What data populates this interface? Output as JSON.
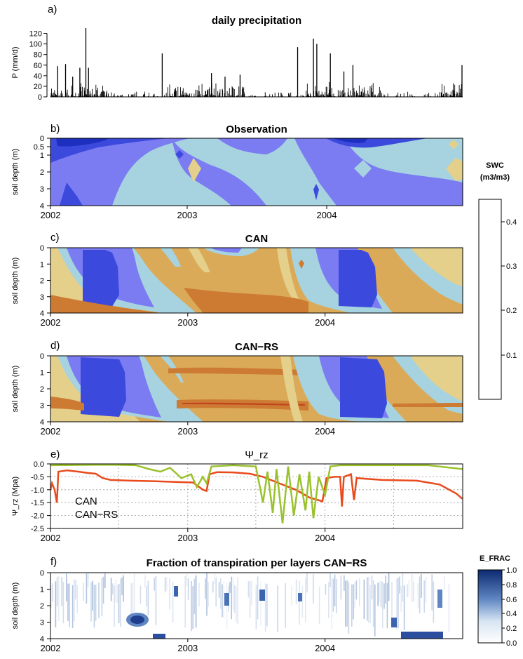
{
  "colors": {
    "swc": [
      "#c1441f",
      "#cd7b33",
      "#daaa59",
      "#e4d08b",
      "#a6d3df",
      "#7b7cf2",
      "#3b49dc",
      "#1d2fbf",
      "#0a1b86"
    ],
    "can_line": "#e84a1c",
    "canrs_line": "#9ac22c",
    "efrac_low": "#ffffff",
    "efrac_high": "#0c2a70"
  },
  "year_ticks": [
    "2002",
    "2003",
    "2004"
  ],
  "swc_legend": {
    "title_line1": "SWC",
    "title_line2": "(m3/m3)",
    "labels": [
      "0.4",
      "0.3",
      "0.2",
      "0.1"
    ]
  },
  "efrac_legend": {
    "title": "E_FRAC",
    "labels": [
      "1.0",
      "0.8",
      "0.6",
      "0.4",
      "0.2",
      "0.0"
    ]
  },
  "chart_data": [
    {
      "panel": "a",
      "letter": "a)",
      "type": "bar",
      "title": "daily precipitation",
      "ylabel": "P (mm/d)",
      "xlabel": "",
      "ylim": [
        0,
        130
      ],
      "yticks": [
        "0",
        "20",
        "40",
        "60",
        "80",
        "100",
        "120"
      ],
      "x_range": [
        "2002-01-01",
        "2004-12-31"
      ],
      "spikes": [
        {
          "date": "2002-01-20",
          "value": 58
        },
        {
          "date": "2002-02-10",
          "value": 62
        },
        {
          "date": "2002-03-01",
          "value": 38
        },
        {
          "date": "2002-03-20",
          "value": 55
        },
        {
          "date": "2002-04-05",
          "value": 130
        },
        {
          "date": "2002-04-12",
          "value": 55
        },
        {
          "date": "2002-10-25",
          "value": 82
        },
        {
          "date": "2003-03-05",
          "value": 45
        },
        {
          "date": "2003-04-10",
          "value": 38
        },
        {
          "date": "2003-05-20",
          "value": 42
        },
        {
          "date": "2003-10-20",
          "value": 94
        },
        {
          "date": "2003-12-01",
          "value": 110
        },
        {
          "date": "2003-12-10",
          "value": 100
        },
        {
          "date": "2004-01-15",
          "value": 82
        },
        {
          "date": "2004-02-20",
          "value": 48
        },
        {
          "date": "2004-03-15",
          "value": 60
        },
        {
          "date": "2004-12-30",
          "value": 60
        }
      ]
    },
    {
      "panel": "b",
      "letter": "b)",
      "type": "heatmap",
      "title": "Observation",
      "ylabel": "soil depth (m)",
      "yticks": [
        "0",
        "0.5",
        "1",
        "2",
        "3",
        "4"
      ],
      "ylim": [
        4,
        0
      ],
      "value_range": [
        0.05,
        0.45
      ],
      "pattern": "mostly 0.25-0.35 (light blue/blue); wet top layers (>0.35) in early 2002, early 2004 and late 2004; small dry pockets (0.2-0.25) near mid-2003 and mid-2004"
    },
    {
      "panel": "c",
      "letter": "c)",
      "type": "heatmap",
      "title": "CAN",
      "ylabel": "soil depth (m)",
      "yticks": [
        "0",
        "1",
        "2",
        "3",
        "4"
      ],
      "ylim": [
        4,
        0
      ],
      "value_range": [
        0.05,
        0.45
      ],
      "pattern": "wet (0.3-0.4) columns in Feb-Jul 2002 and Jan-Jun 2004; dry (0.15-0.2) elsewhere, driest near 2.5-3.5 m"
    },
    {
      "panel": "d",
      "letter": "d)",
      "type": "heatmap",
      "title": "CAN−RS",
      "ylabel": "soil depth (m)",
      "yticks": [
        "0",
        "1",
        "2",
        "3",
        "4"
      ],
      "ylim": [
        4,
        0
      ],
      "value_range": [
        0.05,
        0.45
      ],
      "pattern": "similar to CAN but drier in 2003 (0.1-0.2) with reddish bands at ~1 m and ~3 m"
    },
    {
      "panel": "e",
      "letter": "e)",
      "type": "line",
      "title": "Ψ_rz",
      "ylabel": "Ψ_rz (Mpa)",
      "ylim": [
        -2.5,
        0.0
      ],
      "yticks": [
        "0.0",
        "-0.5",
        "-1.0",
        "-1.5",
        "-2.0",
        "-2.5"
      ],
      "series": [
        {
          "name": "CAN",
          "points": [
            [
              "2002-01-01",
              -1.0
            ],
            [
              "2002-01-05",
              -0.75
            ],
            [
              "2002-01-12",
              -1.0
            ],
            [
              "2002-01-18",
              -1.5
            ],
            [
              "2002-01-22",
              -0.3
            ],
            [
              "2002-02-15",
              -0.25
            ],
            [
              "2002-03-15",
              -0.3
            ],
            [
              "2002-04-10",
              -0.35
            ],
            [
              "2002-05-01",
              -0.38
            ],
            [
              "2002-05-20",
              -0.55
            ],
            [
              "2002-06-10",
              -0.62
            ],
            [
              "2002-08-01",
              -0.65
            ],
            [
              "2002-10-01",
              -0.67
            ],
            [
              "2002-12-01",
              -0.7
            ],
            [
              "2003-01-15",
              -0.72
            ],
            [
              "2003-02-10",
              -1.0
            ],
            [
              "2003-02-20",
              -1.05
            ],
            [
              "2003-02-28",
              -0.4
            ],
            [
              "2003-03-20",
              -0.32
            ],
            [
              "2003-05-01",
              -0.33
            ],
            [
              "2003-06-15",
              -0.38
            ],
            [
              "2003-07-20",
              -0.5
            ],
            [
              "2003-09-01",
              -0.75
            ],
            [
              "2003-10-15",
              -1.0
            ],
            [
              "2003-11-20",
              -1.3
            ],
            [
              "2003-12-25",
              -1.45
            ],
            [
              "2004-01-05",
              -0.55
            ],
            [
              "2004-01-25",
              -0.5
            ],
            [
              "2004-02-10",
              -0.5
            ],
            [
              "2004-02-15",
              -1.65
            ],
            [
              "2004-02-20",
              -0.5
            ],
            [
              "2004-03-10",
              -0.4
            ],
            [
              "2004-03-18",
              -1.4
            ],
            [
              "2004-03-25",
              -0.55
            ],
            [
              "2004-06-01",
              -0.62
            ],
            [
              "2004-09-01",
              -0.65
            ],
            [
              "2004-11-01",
              -0.8
            ],
            [
              "2004-12-15",
              -1.15
            ],
            [
              "2004-12-31",
              -1.35
            ]
          ]
        },
        {
          "name": "CAN−RS",
          "points": [
            [
              "2002-01-01",
              -0.05
            ],
            [
              "2002-06-01",
              -0.03
            ],
            [
              "2002-08-15",
              -0.05
            ],
            [
              "2002-09-20",
              -0.2
            ],
            [
              "2002-10-20",
              -0.3
            ],
            [
              "2002-11-15",
              -0.15
            ],
            [
              "2002-12-15",
              -0.55
            ],
            [
              "2003-01-10",
              -0.4
            ],
            [
              "2003-01-25",
              -0.9
            ],
            [
              "2003-02-10",
              -0.5
            ],
            [
              "2003-02-20",
              -0.75
            ],
            [
              "2003-03-05",
              -0.1
            ],
            [
              "2003-05-01",
              -0.05
            ],
            [
              "2003-07-01",
              -0.1
            ],
            [
              "2003-07-20",
              -1.5
            ],
            [
              "2003-08-01",
              -0.3
            ],
            [
              "2003-08-15",
              -1.9
            ],
            [
              "2003-08-25",
              -0.2
            ],
            [
              "2003-09-10",
              -2.3
            ],
            [
              "2003-09-25",
              -0.1
            ],
            [
              "2003-10-10",
              -2.0
            ],
            [
              "2003-10-25",
              -0.4
            ],
            [
              "2003-11-10",
              -1.8
            ],
            [
              "2003-11-20",
              -0.3
            ],
            [
              "2003-12-01",
              -2.1
            ],
            [
              "2003-12-15",
              -0.5
            ],
            [
              "2004-01-01",
              -1.2
            ],
            [
              "2004-01-15",
              -0.1
            ],
            [
              "2004-02-10",
              -0.05
            ],
            [
              "2004-10-01",
              -0.05
            ],
            [
              "2004-12-31",
              -0.2
            ]
          ]
        }
      ]
    },
    {
      "panel": "f",
      "letter": "f)",
      "type": "heatmap",
      "title": "Fraction of transpiration per layers CAN−RS",
      "ylabel": "soil depth (m)",
      "yticks": [
        "0",
        "1",
        "2",
        "3",
        "4"
      ],
      "ylim": [
        4,
        0
      ],
      "value_range": [
        0.0,
        1.0
      ],
      "pattern": "mostly low (0-0.3); streaks of 0.4-0.8 at 1-2 m; blob of ~0.9 near 3 m in Aug 2002; high values near 4 m late 2004"
    }
  ]
}
